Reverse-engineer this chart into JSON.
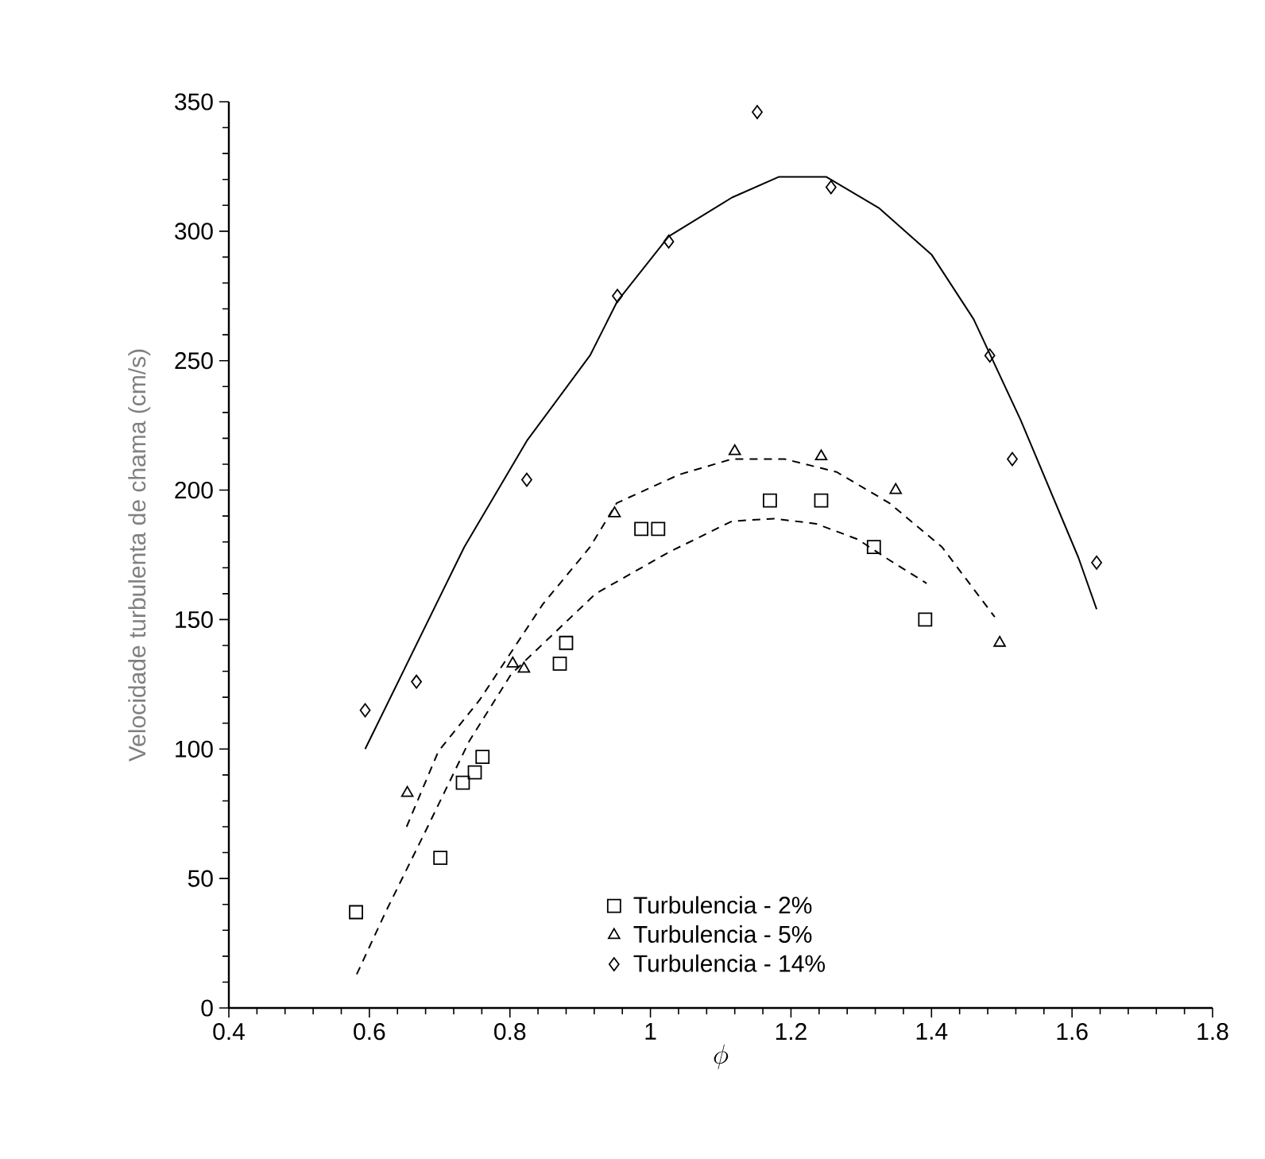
{
  "chart_data": {
    "type": "scatter",
    "xlabel": "\\phi",
    "ylabel": "Velocidade turbulenta de chama (cm/s)",
    "xlim": [
      0.4,
      1.8
    ],
    "ylim": [
      0,
      350
    ],
    "xticks": [
      0.4,
      0.6,
      0.8,
      1,
      1.2,
      1.4,
      1.6,
      1.8
    ],
    "yticks": [
      0,
      50,
      100,
      150,
      200,
      250,
      300,
      350
    ],
    "grid": false,
    "legend": "bottom right",
    "series": [
      {
        "name": "Turbulencia - 2%",
        "marker": "square",
        "color": "#000000",
        "x": [
          0.581,
          0.701,
          0.733,
          0.75,
          0.761,
          0.871,
          0.88,
          0.987,
          1.011,
          1.17,
          1.243,
          1.318,
          1.391
        ],
        "values": [
          37,
          58,
          87,
          91,
          97,
          133,
          141,
          185,
          185,
          196,
          196,
          178,
          150
        ]
      },
      {
        "name": "Turbulencia - 5%",
        "marker": "triangle",
        "color": "#000000",
        "x": [
          0.654,
          0.804,
          0.82,
          0.949,
          1.12,
          1.243,
          1.349,
          1.497
        ],
        "values": [
          83,
          133,
          131,
          191,
          215,
          213,
          200,
          141
        ]
      },
      {
        "name": "Turbulencia - 14%",
        "marker": "diamond",
        "color": "#000000",
        "x": [
          0.594,
          0.667,
          0.824,
          0.953,
          1.026,
          1.152,
          1.257,
          1.483,
          1.515,
          1.635
        ],
        "values": [
          115,
          126,
          204,
          275,
          296,
          346,
          317,
          252,
          212,
          172
        ]
      },
      {
        "type": "line",
        "marker": "none",
        "line_style": "dashed",
        "color": "#000000",
        "x": [
          0.582,
          0.623,
          0.683,
          0.742,
          0.802,
          0.922,
          1.026,
          1.116,
          1.176,
          1.236,
          1.295,
          1.34,
          1.393
        ],
        "values": [
          13,
          37,
          70,
          103,
          129,
          160,
          176,
          188,
          189,
          187,
          181,
          173,
          164
        ]
      },
      {
        "type": "line",
        "marker": "none",
        "line_style": "dashed",
        "color": "#000000",
        "x": [
          0.653,
          0.698,
          0.757,
          0.847,
          0.914,
          0.952,
          1.041,
          1.116,
          1.191,
          1.265,
          1.34,
          1.415,
          1.49
        ],
        "values": [
          70,
          99,
          119,
          156,
          178,
          195,
          206,
          212,
          212,
          207,
          195,
          178,
          151
        ]
      },
      {
        "type": "line",
        "marker": "none",
        "line_style": "solid",
        "color": "#000000",
        "x": [
          0.594,
          0.735,
          0.824,
          0.914,
          0.953,
          1.026,
          1.116,
          1.183,
          1.25,
          1.325,
          1.4,
          1.46,
          1.527,
          1.609,
          1.635
        ],
        "values": [
          100,
          178,
          219,
          252,
          273,
          298,
          313,
          321,
          321,
          309,
          291,
          266,
          227,
          174,
          154
        ]
      }
    ]
  }
}
